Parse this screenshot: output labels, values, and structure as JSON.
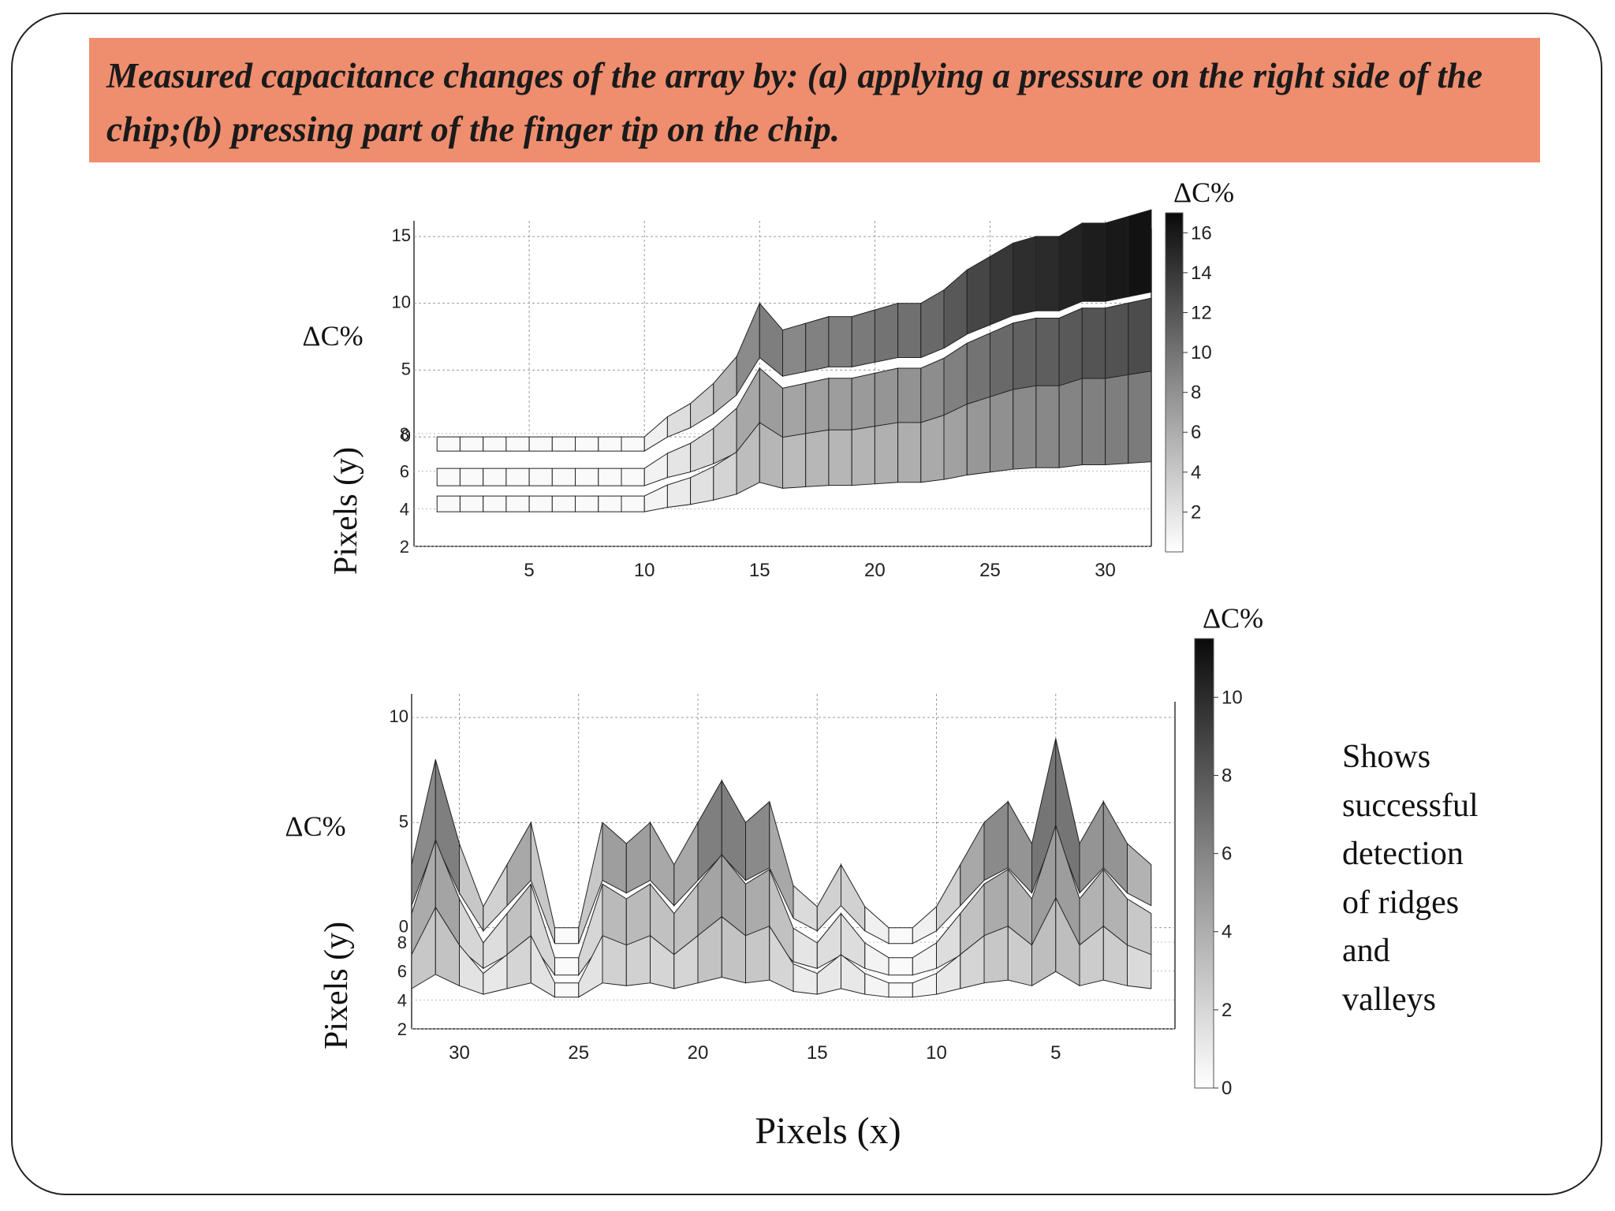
{
  "slide": {
    "title": "Measured capacitance changes of the array by: (a) applying a pressure on the right side of the chip;(b) pressing part of the finger tip on the chip.",
    "side_note_lines": [
      "Shows",
      "successful",
      "detection",
      "of ridges",
      "and",
      "valleys"
    ]
  },
  "chart_data": [
    {
      "id": "a",
      "type": "surface",
      "title": "",
      "zlabel": "ΔC%",
      "ylabel": "Pixels (y)",
      "xlabel": "",
      "colorbar_label": "ΔC%",
      "x_ticks": [
        5,
        10,
        15,
        20,
        25,
        30
      ],
      "x_range": [
        0,
        32
      ],
      "y_ticks": [
        2,
        4,
        6,
        8
      ],
      "z_ticks": [
        0,
        5,
        10,
        15
      ],
      "z_range": [
        -2,
        16
      ],
      "colorbar_ticks": [
        2,
        4,
        6,
        8,
        10,
        12,
        14,
        16
      ],
      "colorbar_range": [
        0,
        17
      ],
      "profile_x": [
        1,
        2,
        3,
        4,
        5,
        6,
        7,
        8,
        9,
        10,
        11,
        12,
        13,
        14,
        15,
        16,
        17,
        18,
        19,
        20,
        21,
        22,
        23,
        24,
        25,
        26,
        27,
        28,
        29,
        30,
        31,
        32
      ],
      "profile_dC": [
        0,
        0,
        0,
        0,
        0,
        0,
        0,
        0,
        0,
        0,
        1.5,
        2.5,
        4,
        6,
        10,
        8,
        8.5,
        9,
        9,
        9.5,
        10,
        10,
        11,
        12.5,
        13.5,
        14.5,
        15,
        15,
        16,
        16,
        16.5,
        17
      ]
    },
    {
      "id": "b",
      "type": "surface",
      "title": "",
      "zlabel": "ΔC%",
      "ylabel": "Pixels (y)",
      "xlabel": "Pixels (x)",
      "colorbar_label": "ΔC%",
      "x_ticks": [
        30,
        25,
        20,
        15,
        10,
        5
      ],
      "x_range": [
        32,
        0
      ],
      "y_ticks": [
        2,
        4,
        6,
        8
      ],
      "z_ticks": [
        0,
        5,
        10
      ],
      "z_range": [
        -2,
        10
      ],
      "colorbar_ticks": [
        0,
        2,
        4,
        6,
        8,
        10
      ],
      "colorbar_range": [
        0,
        11.5
      ],
      "profile_x": [
        32,
        31,
        30,
        29,
        28,
        27,
        26,
        25,
        24,
        23,
        22,
        21,
        20,
        19,
        18,
        17,
        16,
        15,
        14,
        13,
        12,
        11,
        10,
        9,
        8,
        7,
        6,
        5,
        4,
        3,
        2,
        1
      ],
      "profile_dC": [
        3,
        8,
        4,
        1,
        3,
        5,
        0,
        0,
        5,
        4,
        5,
        3,
        5,
        7,
        5,
        6,
        2,
        1,
        3,
        1,
        0,
        0,
        1,
        3,
        5,
        6,
        4,
        9,
        4,
        6,
        4,
        3
      ]
    }
  ]
}
